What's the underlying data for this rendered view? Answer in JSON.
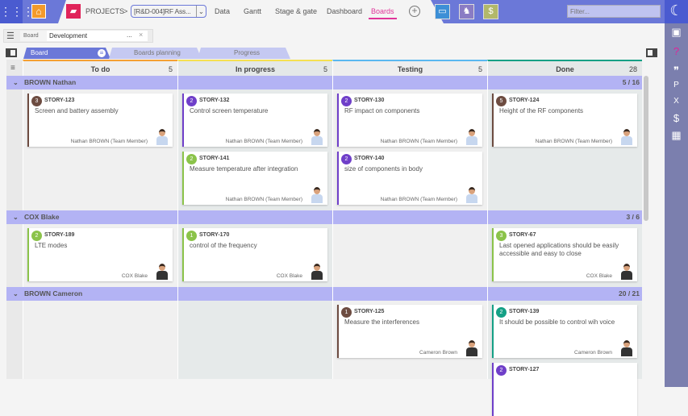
{
  "topbar": {
    "breadcrumb": "PROJECTS",
    "separator": ">",
    "project": "[R&D-004]RF Ass...",
    "tabs": [
      "Data",
      "Gantt",
      "Stage & gate",
      "Dashboard",
      "Boards"
    ],
    "active_tab": "Boards",
    "filter_placeholder": "Filter...",
    "accent": "#6b78d8"
  },
  "toolbar": {
    "board_label": "Board",
    "board_value": "Development",
    "more": "...",
    "clear": "×"
  },
  "view_tabs": [
    "Board",
    "Boards planning",
    "Progress"
  ],
  "columns": [
    {
      "name": "To do",
      "count": "5",
      "color": "#f5a033",
      "bg": "#f0f0f0",
      "hbg": "#eeeeee"
    },
    {
      "name": "In progress",
      "count": "5",
      "color": "#f5e050",
      "bg": "#e6eaea",
      "hbg": "#e4e8e8"
    },
    {
      "name": "Testing",
      "count": "5",
      "color": "#5bb8f0",
      "bg": "#f0f0f0",
      "hbg": "#eeeeee"
    },
    {
      "name": "Done",
      "count": "28",
      "color": "#14a085",
      "bg": "#e6eaea",
      "hbg": "#e4e8e8"
    }
  ],
  "lanes": [
    {
      "name": "BROWN Nathan",
      "count": "5 / 16",
      "cells": [
        [
          {
            "n": "3",
            "c": "#6d4c41",
            "id": "STORY-123",
            "title": "Screen and battery assembly",
            "who": "Nathan BROWN (Team Member)"
          }
        ],
        [
          {
            "n": "2",
            "c": "#6f3fc9",
            "id": "STORY-132",
            "title": "Control screen temperature",
            "who": "Nathan BROWN (Team Member)"
          },
          {
            "n": "2",
            "c": "#8bc34a",
            "id": "STORY-141",
            "title": "Measure temperature after integration",
            "who": "Nathan BROWN (Team Member)"
          }
        ],
        [
          {
            "n": "2",
            "c": "#6f3fc9",
            "id": "STORY-130",
            "title": "RF impact on components",
            "who": "Nathan BROWN (Team Member)"
          },
          {
            "n": "2",
            "c": "#6f3fc9",
            "id": "STORY-140",
            "title": "size of components in body",
            "who": "Nathan BROWN (Team Member)"
          }
        ],
        [
          {
            "n": "5",
            "c": "#6d4c41",
            "id": "STORY-124",
            "title": "Height of the RF components",
            "who": "Nathan BROWN (Team Member)"
          }
        ]
      ]
    },
    {
      "name": "COX Blake",
      "count": "3 / 6",
      "cells": [
        [
          {
            "n": "2",
            "c": "#8bc34a",
            "id": "STORY-189",
            "title": "LTE modes",
            "who": "COX Blake",
            "dark": true
          }
        ],
        [
          {
            "n": "1",
            "c": "#8bc34a",
            "id": "STORY-170",
            "title": "control of the frequency",
            "who": "COX Blake",
            "dark": true
          }
        ],
        [],
        [
          {
            "n": "3",
            "c": "#8bc34a",
            "id": "STORY-67",
            "title": "Last opened applications should be easily accessible and easy to close",
            "who": "COX Blake",
            "dark": true
          }
        ]
      ]
    },
    {
      "name": "BROWN Cameron",
      "count": "20 / 21",
      "cells": [
        [],
        [],
        [
          {
            "n": "1",
            "c": "#6d4c41",
            "id": "STORY-125",
            "title": "Measure the interferences",
            "who": "Cameron Brown",
            "dark": true
          }
        ],
        [
          {
            "n": "2",
            "c": "#14a085",
            "id": "STORY-139",
            "title": "It should be possible to control wih voice",
            "who": "Cameron Brown",
            "dark": true
          },
          {
            "n": "2",
            "c": "#6f3fc9",
            "id": "STORY-127",
            "title": "",
            "who": ""
          }
        ]
      ]
    }
  ]
}
